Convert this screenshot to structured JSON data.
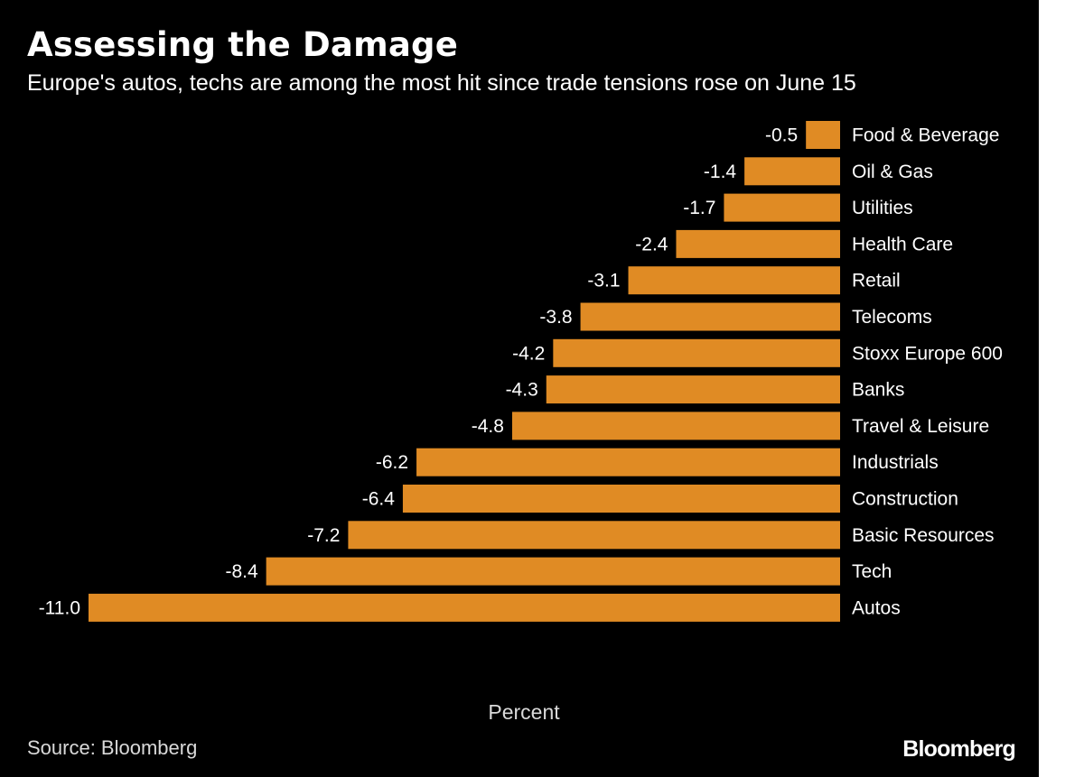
{
  "title": "Assessing the Damage",
  "subtitle": "Europe's autos, techs are among the most hit since trade tensions rose on June 15",
  "xlabel": "Percent",
  "source": "Source: Bloomberg",
  "logo_text": "Bloomberg",
  "colors": {
    "background": "#000000",
    "bar": "#e08b24",
    "text": "#ffffff"
  },
  "chart_data": {
    "type": "bar",
    "orientation": "horizontal",
    "title": "Assessing the Damage",
    "subtitle": "Europe's autos, techs are among the most hit since trade tensions rose on June 15",
    "xlabel": "Percent",
    "ylabel": "",
    "xlim": [
      -11,
      0
    ],
    "grid": false,
    "categories": [
      "Food & Beverage",
      "Oil & Gas",
      "Utilities",
      "Health Care",
      "Retail",
      "Telecoms",
      "Stoxx Europe 600",
      "Banks",
      "Travel & Leisure",
      "Industrials",
      "Construction",
      "Basic Resources",
      "Tech",
      "Autos"
    ],
    "values": [
      -0.5,
      -1.4,
      -1.7,
      -2.4,
      -3.1,
      -3.8,
      -4.2,
      -4.3,
      -4.8,
      -6.2,
      -6.4,
      -7.2,
      -8.4,
      -11.0
    ],
    "value_labels": [
      "-0.5",
      "-1.4",
      "-1.7",
      "-2.4",
      "-3.1",
      "-3.8",
      "-4.2",
      "-4.3",
      "-4.8",
      "-6.2",
      "-6.4",
      "-7.2",
      "-8.4",
      "-11.0"
    ]
  }
}
